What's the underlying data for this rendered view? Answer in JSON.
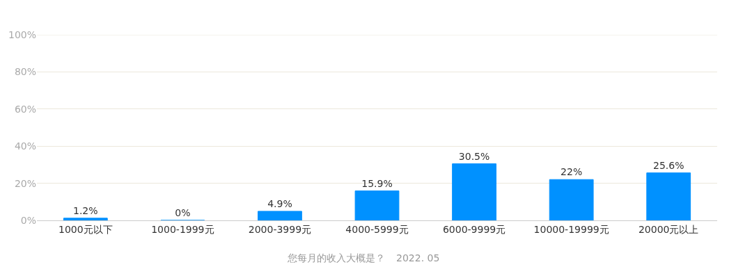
{
  "chart_data": {
    "type": "bar",
    "categories": [
      "1000元以下",
      "1000-1999元",
      "2000-3999元",
      "4000-5999元",
      "6000-9999元",
      "10000-19999元",
      "20000元以上"
    ],
    "values": [
      1.2,
      0,
      4.9,
      15.9,
      30.5,
      22,
      25.6
    ],
    "value_labels": [
      "1.2%",
      "0%",
      "4.9%",
      "15.9%",
      "30.5%",
      "22%",
      "25.6%"
    ],
    "color": "#0091ff",
    "ylim": [
      0,
      100
    ],
    "yticks": [
      {
        "value": 0,
        "label": "0%"
      },
      {
        "value": 20,
        "label": "20%"
      },
      {
        "value": 40,
        "label": "40%"
      },
      {
        "value": 60,
        "label": "60%"
      },
      {
        "value": 80,
        "label": "80%"
      },
      {
        "value": 100,
        "label": "100%"
      }
    ],
    "grid": "y",
    "legend": false,
    "annotations": [
      "您每月的收入大概是？",
      "2022. 05"
    ]
  }
}
